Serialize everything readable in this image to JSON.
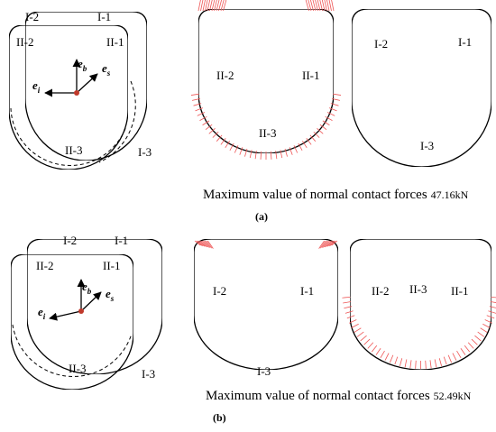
{
  "panels": [
    {
      "label": "(a)",
      "caption": "Maximum value of normal contact forces",
      "force": "47.16kN",
      "views": [
        {
          "labels": [
            "I-2",
            "I-1",
            "II-2",
            "II-1",
            "II-3",
            "I-3"
          ],
          "vectors": [
            {
              "base": "e",
              "sub": "b"
            },
            {
              "base": "e",
              "sub": "s"
            },
            {
              "base": "e",
              "sub": "i"
            }
          ]
        },
        {
          "labels": [
            "II-2",
            "II-1",
            "II-3"
          ]
        },
        {
          "labels": [
            "I-2",
            "I-1",
            "I-3"
          ]
        }
      ]
    },
    {
      "label": "(b)",
      "caption": "Maximum value of normal contact forces",
      "force": "52.49kN",
      "views": [
        {
          "labels": [
            "I-2",
            "I-1",
            "II-2",
            "II-1",
            "II-3",
            "I-3"
          ],
          "vectors": [
            {
              "base": "e",
              "sub": "b"
            },
            {
              "base": "e",
              "sub": "s"
            },
            {
              "base": "e",
              "sub": "i"
            }
          ]
        },
        {
          "labels": [
            "I-2",
            "I-1",
            "I-3"
          ]
        },
        {
          "labels": [
            "II-2",
            "II-3",
            "II-1"
          ]
        }
      ]
    }
  ]
}
